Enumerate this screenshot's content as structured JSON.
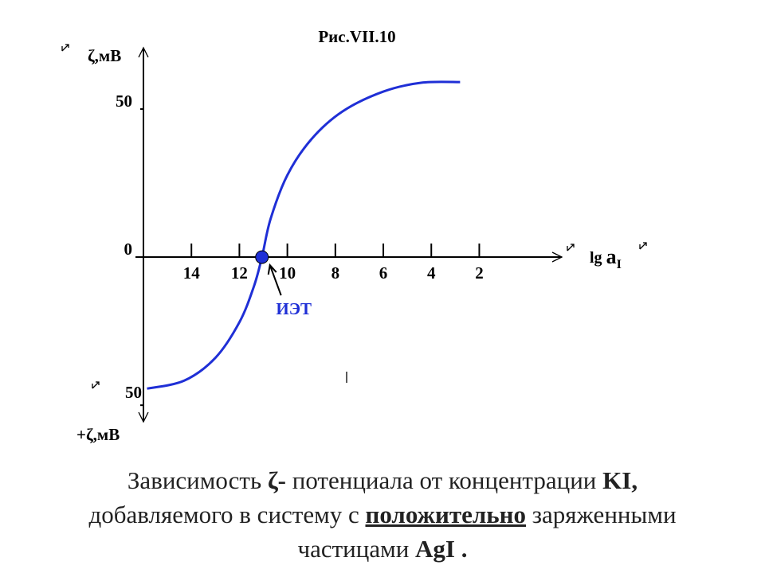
{
  "chart_data": {
    "type": "line",
    "title": "Рис.VII.10",
    "ylabel": "ζ,мВ",
    "ylabel_bottom": "+ζ,мВ",
    "xlabel": {
      "prefix": "lg",
      "main": "a",
      "sub": "I"
    },
    "xlim": [
      16,
      -1.44
    ],
    "ylim": [
      -55.6,
      70.7
    ],
    "xticks": [
      14,
      12,
      10,
      8,
      6,
      4,
      2
    ],
    "yticks": [
      50,
      0,
      {
        "value": -50,
        "label": "50"
      }
    ],
    "series": [
      {
        "color": "#1f2fd6",
        "x": [
          15.85,
          14.3,
          13.0,
          12.0,
          11.4,
          11.06,
          10.7,
          10.0,
          9.0,
          7.7,
          6.0,
          4.4,
          2.8
        ],
        "values": [
          -44.4,
          -41.7,
          -34,
          -22,
          -10,
          0,
          12.9,
          27.7,
          39.8,
          49.2,
          55.9,
          58.9,
          59.1
        ]
      }
    ],
    "annotation": {
      "text": "ИЭТ",
      "x": 11.06,
      "y": 0,
      "color": "#1f2fd6"
    }
  },
  "caption": [
    [
      {
        "text": "Зависимость ",
        "style": "normal"
      },
      {
        "text": "ζ-",
        "style": "bold"
      },
      {
        "text": " потенциала от концентрации ",
        "style": "normal"
      },
      {
        "text": "KI,",
        "style": "bold"
      }
    ],
    [
      {
        "text": "добавляемого в систему с ",
        "style": "normal"
      },
      {
        "text": "положительно",
        "style": "bold-underline"
      },
      {
        "text": " заряженными",
        "style": "normal"
      }
    ],
    [
      {
        "text": "частицами ",
        "style": "normal"
      },
      {
        "text": "AgI .",
        "style": "bold"
      }
    ]
  ]
}
